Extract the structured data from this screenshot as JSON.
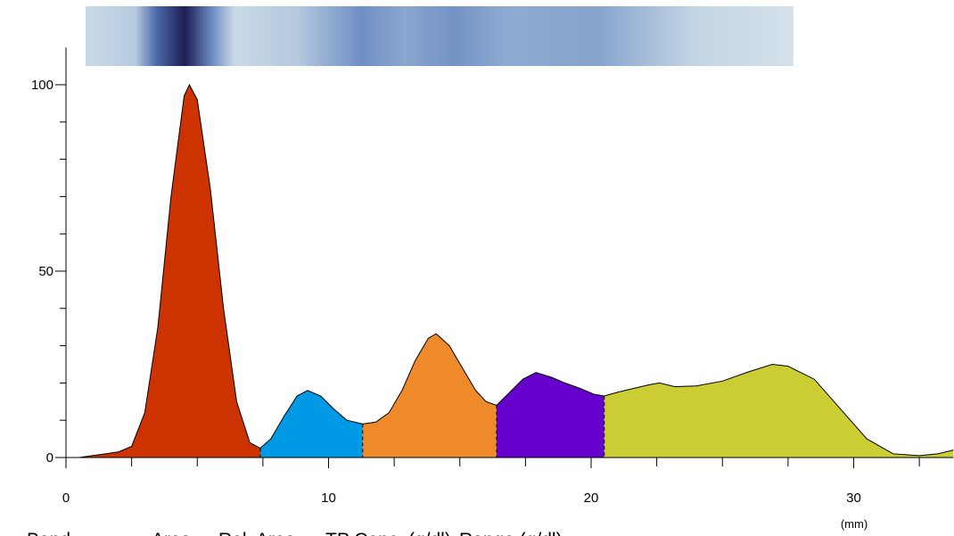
{
  "chart_data": {
    "type": "area",
    "xlabel": "(mm)",
    "xlim": [
      0,
      33.8
    ],
    "ylim": [
      0,
      110
    ],
    "xticks": [
      0,
      10,
      20,
      30
    ],
    "xminor": [
      2.5,
      5,
      7.5,
      12.5,
      15,
      17.5,
      22.5,
      25,
      27.5,
      32.5
    ],
    "yticks": [
      0,
      50,
      100
    ],
    "yminor": [
      10,
      20,
      30,
      40,
      60,
      70,
      80,
      90
    ],
    "series": [
      {
        "color": "#cc3300",
        "x": [
          0.5,
          1.0,
          1.5,
          2.0,
          2.5,
          3.0,
          3.5,
          4.0,
          4.5,
          4.7,
          5.0,
          5.5,
          6.0,
          6.5,
          7.0,
          7.4
        ],
        "values": [
          0,
          0.5,
          1,
          1.5,
          3,
          12,
          35,
          70,
          97,
          100,
          96,
          72,
          40,
          15,
          4,
          2.5
        ]
      },
      {
        "color": "#0099e6",
        "x": [
          7.4,
          7.8,
          8.3,
          8.8,
          9.2,
          9.7,
          10.2,
          10.7,
          11.3
        ],
        "values": [
          2.5,
          5,
          11,
          16.5,
          18,
          16.5,
          13,
          10,
          9
        ]
      },
      {
        "color": "#ee8a2a",
        "x": [
          11.3,
          11.8,
          12.3,
          12.8,
          13.3,
          13.8,
          14.1,
          14.6,
          15.1,
          15.6,
          16.0,
          16.4
        ],
        "values": [
          9,
          9.5,
          12,
          18,
          26,
          32,
          33.2,
          30,
          24,
          18,
          15,
          14
        ]
      },
      {
        "color": "#6600cc",
        "x": [
          16.4,
          16.9,
          17.4,
          17.9,
          18.5,
          19.0,
          19.6,
          20.1,
          20.5
        ],
        "values": [
          14,
          17.5,
          21,
          22.8,
          21.5,
          20,
          18.5,
          17,
          16.5
        ]
      },
      {
        "color": "#cccc33",
        "x": [
          20.5,
          21.0,
          21.6,
          22.2,
          22.6,
          23.2,
          24.0,
          25.0,
          26.0,
          26.9,
          27.5,
          28.5,
          29.5,
          30.5,
          31.5,
          32.5,
          33.2,
          33.8
        ],
        "values": [
          16.5,
          17.5,
          18.5,
          19.5,
          20,
          19,
          19.2,
          20.5,
          23,
          25,
          24.5,
          21,
          13,
          5,
          1,
          0.5,
          1,
          2
        ]
      }
    ]
  },
  "table": {
    "columns": [
      "Band",
      "Area",
      "Rel. Area",
      "TP Conc. (g/dl)",
      "Range (g/dl)"
    ]
  }
}
